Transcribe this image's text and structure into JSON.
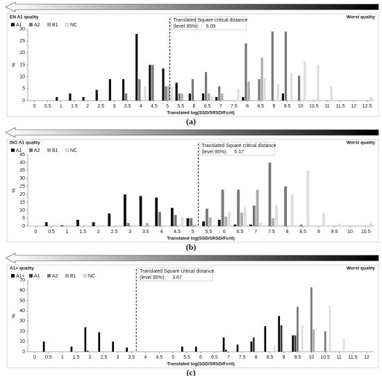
{
  "charts": [
    {
      "type": "bar",
      "top_left_label": "EN A1 quality",
      "top_right_label": "Worst quality",
      "caption": "(a)",
      "annotation": "Translated Square critical distance",
      "annotation_level": "(level 95%):",
      "critical_value": 5.09,
      "x_label": "Translated log(SSD/SRSD/Fcrit)",
      "y_label": "%",
      "x": [
        0,
        0.5,
        1,
        1.5,
        2,
        2.5,
        3,
        3.5,
        4,
        4.5,
        5,
        5.5,
        6,
        6.5,
        7,
        7.5,
        8,
        8.5,
        9,
        9.5,
        10,
        10.5,
        11,
        11.5,
        12,
        12.5
      ],
      "xlim": [
        -0.25,
        12.75
      ],
      "xticks": [
        0,
        0.5,
        1,
        1.5,
        2,
        2.5,
        3,
        3.5,
        4,
        4.5,
        5,
        5.5,
        6,
        6.5,
        7,
        7.5,
        8,
        8.5,
        9,
        9.5,
        10,
        10.5,
        11,
        11.5,
        12,
        12.5
      ],
      "ylim": [
        0,
        30
      ],
      "yticks": [
        0,
        5,
        10,
        15,
        20,
        25,
        30
      ],
      "series": [
        {
          "name": "A1",
          "color": "#111111",
          "values": [
            0,
            0,
            1.5,
            3,
            1.5,
            4.5,
            9,
            9,
            28,
            15,
            13.5,
            7.5,
            3,
            3,
            1.5,
            0,
            1.5,
            0,
            0,
            3,
            0,
            0,
            0,
            0,
            0,
            0
          ]
        },
        {
          "name": "A2",
          "color": "#777777",
          "values": [
            0,
            0,
            0,
            0,
            0,
            0,
            0,
            3,
            9,
            15,
            6,
            3,
            9,
            12,
            6,
            0,
            24,
            9,
            29,
            29,
            10.5,
            0,
            0,
            0,
            0,
            0
          ]
        },
        {
          "name": "B1",
          "color": "#aaaaaa",
          "values": [
            0,
            0,
            0,
            0,
            0,
            0,
            0,
            0,
            0,
            0,
            6,
            3,
            0,
            3,
            3,
            0,
            8,
            18,
            0,
            0,
            0,
            0,
            0,
            0,
            0,
            0
          ]
        },
        {
          "name": "NC",
          "color": "#dddddd",
          "values": [
            0,
            0,
            0,
            0,
            0,
            0,
            0,
            0,
            6,
            0,
            6,
            0,
            0,
            2,
            0,
            5,
            0,
            9.5,
            7,
            11.5,
            16.5,
            15,
            6,
            0,
            0,
            1.5
          ]
        }
      ]
    },
    {
      "type": "bar",
      "top_left_label": "ISO A1 quality",
      "top_right_label": "Worst quality",
      "caption": "(b)",
      "annotation": "Translated Square critical distance",
      "annotation_level": "(level 95%):",
      "critical_value": 5.17,
      "x_label": "Translated log(SSD/SRSD/Fcrit)",
      "y_label": "%",
      "x": [
        0,
        0.5,
        1,
        1.5,
        2,
        2.5,
        3,
        3.5,
        4,
        4.5,
        5,
        5.5,
        6,
        6.5,
        7,
        7.5,
        8,
        8.5,
        9,
        9.5,
        10,
        10.5
      ],
      "xlim": [
        -0.25,
        10.75
      ],
      "xticks": [
        0,
        0.5,
        1,
        1.5,
        2,
        2.5,
        3,
        3.5,
        4,
        4.5,
        5,
        5.5,
        6,
        6.5,
        7,
        7.5,
        8,
        8.5,
        9,
        9.5,
        10,
        10.5
      ],
      "ylim": [
        0,
        45
      ],
      "yticks": [
        0,
        5,
        10,
        15,
        20,
        25,
        30,
        35,
        40,
        45
      ],
      "series": [
        {
          "name": "A1",
          "color": "#111111",
          "values": [
            0,
            2.5,
            0.5,
            4,
            2.5,
            8,
            20,
            19,
            18,
            11.5,
            5,
            3,
            4,
            1,
            1,
            0,
            0,
            0,
            0,
            0,
            0,
            0
          ]
        },
        {
          "name": "A2",
          "color": "#777777",
          "values": [
            0,
            0,
            0,
            0,
            0,
            0,
            2,
            0,
            9,
            7,
            5,
            11,
            23,
            23,
            13,
            40,
            25,
            1,
            0,
            0,
            0,
            0
          ]
        },
        {
          "name": "B1",
          "color": "#aaaaaa",
          "values": [
            0,
            0,
            0,
            0,
            0,
            0,
            0,
            2,
            0,
            0,
            1,
            5.5,
            6,
            8.5,
            23,
            5,
            0,
            0,
            0,
            0,
            0,
            0
          ]
        },
        {
          "name": "NC",
          "color": "#dddddd",
          "values": [
            0,
            0,
            0,
            0,
            0,
            1,
            1,
            0,
            0,
            6,
            0,
            0,
            9,
            12,
            2,
            13,
            20,
            35,
            8,
            1.5,
            0,
            2
          ]
        }
      ]
    },
    {
      "type": "bar",
      "top_left_label": "A1+ quality",
      "top_right_label": "Worst quality",
      "caption": "(c)",
      "annotation": "Translated Square critical distance.",
      "annotation_level": "(level 95%):",
      "critical_value": 3.67,
      "x_label": "Translated log(SSD/SRSD/Fcrit)",
      "y_label": "%",
      "x": [
        0,
        0.5,
        1,
        1.5,
        2,
        2.5,
        3,
        3.5,
        4,
        4.5,
        5,
        5.5,
        6,
        6.5,
        7,
        7.5,
        8,
        8.5,
        9,
        9.5,
        10,
        10.5,
        11,
        11.5,
        12
      ],
      "xlim": [
        -0.25,
        12.25
      ],
      "xticks": [
        0,
        0.5,
        1,
        1.5,
        2,
        2.5,
        3,
        3.5,
        4,
        4.5,
        5,
        5.5,
        6,
        6.5,
        7,
        7.5,
        8,
        8.5,
        9,
        9.5,
        10,
        10.5,
        11,
        11.5,
        12
      ],
      "ylim": [
        0,
        70
      ],
      "yticks": [
        0,
        10,
        20,
        30,
        40,
        50,
        60,
        70
      ],
      "series": [
        {
          "name": "A1+",
          "color": "#000000",
          "values": [
            0,
            10,
            0,
            5,
            24,
            19,
            10,
            4,
            0,
            0,
            0,
            5,
            5,
            0,
            14,
            7,
            10,
            25,
            35,
            16,
            0,
            0,
            0,
            0,
            0
          ]
        },
        {
          "name": "A1",
          "color": "#333333",
          "values": [
            0,
            0,
            0,
            0,
            1,
            0,
            0,
            0,
            0,
            0,
            0,
            0,
            0,
            0,
            2,
            0,
            14,
            0,
            26,
            16,
            0,
            0,
            0,
            0,
            0
          ]
        },
        {
          "name": "A2",
          "color": "#777777",
          "values": [
            0,
            0,
            0,
            0,
            0,
            0,
            0,
            0,
            0,
            0,
            0,
            0,
            0,
            0,
            0,
            0,
            0,
            0,
            0,
            44,
            63,
            20,
            0,
            0,
            0
          ]
        },
        {
          "name": "B1",
          "color": "#aaaaaa",
          "values": [
            0,
            0,
            0,
            0,
            0,
            0,
            0,
            0,
            0,
            0,
            0,
            0,
            0,
            0,
            0,
            0,
            0,
            0,
            0,
            0,
            22,
            0,
            0,
            0,
            0
          ]
        },
        {
          "name": "NC",
          "color": "#dddddd",
          "values": [
            0,
            0,
            0,
            0,
            0,
            0,
            0,
            0,
            0,
            0,
            0,
            0,
            0,
            0,
            0,
            0,
            0,
            6,
            0,
            26,
            0,
            45,
            13,
            0,
            0
          ]
        }
      ]
    }
  ]
}
